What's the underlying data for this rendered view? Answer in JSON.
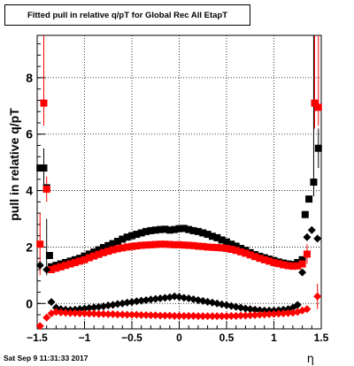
{
  "chart_data": {
    "type": "scatter",
    "title": "Fitted pull in relative q/pT for Global Rec All EtapT",
    "xlabel": "η",
    "ylabel": "pull in relative q/pT",
    "xlim": [
      -1.5,
      1.5
    ],
    "ylim": [
      -0.9,
      9.5
    ],
    "xticks": [
      -1.5,
      -1,
      -0.5,
      0,
      0.5,
      1,
      1.5
    ],
    "xticklabels": [
      "−1.5",
      "−1",
      "−0.5",
      "0",
      "0.5",
      "1",
      "1.5"
    ],
    "yticks": [
      0,
      2,
      4,
      6,
      8
    ],
    "yticklabels": [
      "0",
      "2",
      "4",
      "6",
      "8"
    ],
    "grid": true,
    "legend": "none",
    "colors": {
      "black": "#000000",
      "red": "#ff0000"
    },
    "series": [
      {
        "marker": "square",
        "color": "#000000",
        "points": [
          {
            "x": -1.47,
            "y": 4.8
          },
          {
            "x": -1.43,
            "y": 4.8
          },
          {
            "x": -1.4,
            "y": 4.1
          },
          {
            "x": -1.37,
            "y": 1.7
          },
          {
            "x": -1.35,
            "y": 1.3
          },
          {
            "x": -1.3,
            "y": 1.35
          },
          {
            "x": -1.25,
            "y": 1.4
          },
          {
            "x": -1.2,
            "y": 1.45
          },
          {
            "x": -1.15,
            "y": 1.5
          },
          {
            "x": -1.1,
            "y": 1.55
          },
          {
            "x": -1.05,
            "y": 1.6
          },
          {
            "x": -1.0,
            "y": 1.68
          },
          {
            "x": -0.95,
            "y": 1.75
          },
          {
            "x": -0.9,
            "y": 1.82
          },
          {
            "x": -0.85,
            "y": 1.9
          },
          {
            "x": -0.8,
            "y": 1.98
          },
          {
            "x": -0.75,
            "y": 2.05
          },
          {
            "x": -0.7,
            "y": 2.12
          },
          {
            "x": -0.65,
            "y": 2.2
          },
          {
            "x": -0.6,
            "y": 2.28
          },
          {
            "x": -0.55,
            "y": 2.35
          },
          {
            "x": -0.5,
            "y": 2.4
          },
          {
            "x": -0.45,
            "y": 2.45
          },
          {
            "x": -0.4,
            "y": 2.5
          },
          {
            "x": -0.35,
            "y": 2.55
          },
          {
            "x": -0.3,
            "y": 2.58
          },
          {
            "x": -0.25,
            "y": 2.6
          },
          {
            "x": -0.2,
            "y": 2.62
          },
          {
            "x": -0.15,
            "y": 2.63
          },
          {
            "x": -0.1,
            "y": 2.6
          },
          {
            "x": -0.05,
            "y": 2.62
          },
          {
            "x": 0.0,
            "y": 2.65
          },
          {
            "x": 0.05,
            "y": 2.66
          },
          {
            "x": 0.1,
            "y": 2.62
          },
          {
            "x": 0.15,
            "y": 2.58
          },
          {
            "x": 0.2,
            "y": 2.55
          },
          {
            "x": 0.25,
            "y": 2.5
          },
          {
            "x": 0.3,
            "y": 2.45
          },
          {
            "x": 0.35,
            "y": 2.38
          },
          {
            "x": 0.4,
            "y": 2.33
          },
          {
            "x": 0.45,
            "y": 2.25
          },
          {
            "x": 0.5,
            "y": 2.18
          },
          {
            "x": 0.55,
            "y": 2.1
          },
          {
            "x": 0.6,
            "y": 2.03
          },
          {
            "x": 0.65,
            "y": 1.95
          },
          {
            "x": 0.7,
            "y": 1.88
          },
          {
            "x": 0.75,
            "y": 1.8
          },
          {
            "x": 0.8,
            "y": 1.73
          },
          {
            "x": 0.85,
            "y": 1.67
          },
          {
            "x": 0.9,
            "y": 1.62
          },
          {
            "x": 0.95,
            "y": 1.57
          },
          {
            "x": 1.0,
            "y": 1.52
          },
          {
            "x": 1.05,
            "y": 1.47
          },
          {
            "x": 1.1,
            "y": 1.43
          },
          {
            "x": 1.15,
            "y": 1.4
          },
          {
            "x": 1.2,
            "y": 1.38
          },
          {
            "x": 1.25,
            "y": 1.45
          },
          {
            "x": 1.3,
            "y": 1.55
          },
          {
            "x": 1.33,
            "y": 3.15
          },
          {
            "x": 1.37,
            "y": 3.7
          },
          {
            "x": 1.42,
            "y": 4.3
          },
          {
            "x": 1.47,
            "y": 5.5
          }
        ]
      },
      {
        "marker": "square",
        "color": "#ff0000",
        "points": [
          {
            "x": -1.47,
            "y": 2.1
          },
          {
            "x": -1.43,
            "y": 7.1
          },
          {
            "x": -1.4,
            "y": 4.05
          },
          {
            "x": -1.35,
            "y": 1.2
          },
          {
            "x": -1.3,
            "y": 1.25
          },
          {
            "x": -1.25,
            "y": 1.3
          },
          {
            "x": -1.2,
            "y": 1.35
          },
          {
            "x": -1.15,
            "y": 1.4
          },
          {
            "x": -1.1,
            "y": 1.45
          },
          {
            "x": -1.05,
            "y": 1.5
          },
          {
            "x": -1.0,
            "y": 1.55
          },
          {
            "x": -0.95,
            "y": 1.62
          },
          {
            "x": -0.9,
            "y": 1.68
          },
          {
            "x": -0.85,
            "y": 1.74
          },
          {
            "x": -0.8,
            "y": 1.8
          },
          {
            "x": -0.75,
            "y": 1.85
          },
          {
            "x": -0.7,
            "y": 1.9
          },
          {
            "x": -0.65,
            "y": 1.94
          },
          {
            "x": -0.6,
            "y": 1.97
          },
          {
            "x": -0.55,
            "y": 2.0
          },
          {
            "x": -0.5,
            "y": 2.02
          },
          {
            "x": -0.45,
            "y": 2.04
          },
          {
            "x": -0.4,
            "y": 2.06
          },
          {
            "x": -0.35,
            "y": 2.07
          },
          {
            "x": -0.3,
            "y": 2.08
          },
          {
            "x": -0.25,
            "y": 2.09
          },
          {
            "x": -0.2,
            "y": 2.1
          },
          {
            "x": -0.15,
            "y": 2.1
          },
          {
            "x": -0.1,
            "y": 2.09
          },
          {
            "x": -0.05,
            "y": 2.08
          },
          {
            "x": 0.0,
            "y": 2.08
          },
          {
            "x": 0.05,
            "y": 2.07
          },
          {
            "x": 0.1,
            "y": 2.06
          },
          {
            "x": 0.15,
            "y": 2.05
          },
          {
            "x": 0.2,
            "y": 2.03
          },
          {
            "x": 0.25,
            "y": 2.02
          },
          {
            "x": 0.3,
            "y": 2.0
          },
          {
            "x": 0.35,
            "y": 1.99
          },
          {
            "x": 0.4,
            "y": 1.98
          },
          {
            "x": 0.45,
            "y": 1.97
          },
          {
            "x": 0.5,
            "y": 1.95
          },
          {
            "x": 0.55,
            "y": 1.92
          },
          {
            "x": 0.6,
            "y": 1.88
          },
          {
            "x": 0.65,
            "y": 1.83
          },
          {
            "x": 0.7,
            "y": 1.78
          },
          {
            "x": 0.75,
            "y": 1.72
          },
          {
            "x": 0.8,
            "y": 1.66
          },
          {
            "x": 0.85,
            "y": 1.6
          },
          {
            "x": 0.9,
            "y": 1.55
          },
          {
            "x": 0.95,
            "y": 1.5
          },
          {
            "x": 1.0,
            "y": 1.45
          },
          {
            "x": 1.05,
            "y": 1.41
          },
          {
            "x": 1.1,
            "y": 1.37
          },
          {
            "x": 1.15,
            "y": 1.34
          },
          {
            "x": 1.2,
            "y": 1.32
          },
          {
            "x": 1.25,
            "y": 1.33
          },
          {
            "x": 1.3,
            "y": 1.4
          },
          {
            "x": 1.35,
            "y": 1.75
          },
          {
            "x": 1.43,
            "y": 7.1
          },
          {
            "x": 1.47,
            "y": 6.95
          }
        ]
      },
      {
        "marker": "diamond",
        "color": "#000000",
        "points": [
          {
            "x": -1.47,
            "y": 1.35
          },
          {
            "x": -1.4,
            "y": 1.2
          },
          {
            "x": -1.35,
            "y": 0.05
          },
          {
            "x": -1.3,
            "y": -0.15
          },
          {
            "x": -1.25,
            "y": -0.2
          },
          {
            "x": -1.2,
            "y": -0.22
          },
          {
            "x": -1.15,
            "y": -0.23
          },
          {
            "x": -1.1,
            "y": -0.22
          },
          {
            "x": -1.05,
            "y": -0.2
          },
          {
            "x": -1.0,
            "y": -0.18
          },
          {
            "x": -0.95,
            "y": -0.16
          },
          {
            "x": -0.9,
            "y": -0.14
          },
          {
            "x": -0.85,
            "y": -0.12
          },
          {
            "x": -0.8,
            "y": -0.1
          },
          {
            "x": -0.75,
            "y": -0.07
          },
          {
            "x": -0.7,
            "y": -0.05
          },
          {
            "x": -0.65,
            "y": -0.02
          },
          {
            "x": -0.6,
            "y": 0.0
          },
          {
            "x": -0.55,
            "y": 0.03
          },
          {
            "x": -0.5,
            "y": 0.05
          },
          {
            "x": -0.45,
            "y": 0.08
          },
          {
            "x": -0.4,
            "y": 0.1
          },
          {
            "x": -0.35,
            "y": 0.12
          },
          {
            "x": -0.3,
            "y": 0.14
          },
          {
            "x": -0.25,
            "y": 0.16
          },
          {
            "x": -0.2,
            "y": 0.18
          },
          {
            "x": -0.15,
            "y": 0.2
          },
          {
            "x": -0.1,
            "y": 0.22
          },
          {
            "x": -0.05,
            "y": 0.25
          },
          {
            "x": 0.0,
            "y": 0.23
          },
          {
            "x": 0.05,
            "y": 0.2
          },
          {
            "x": 0.1,
            "y": 0.18
          },
          {
            "x": 0.15,
            "y": 0.15
          },
          {
            "x": 0.2,
            "y": 0.12
          },
          {
            "x": 0.25,
            "y": 0.09
          },
          {
            "x": 0.3,
            "y": 0.06
          },
          {
            "x": 0.35,
            "y": 0.03
          },
          {
            "x": 0.4,
            "y": 0.0
          },
          {
            "x": 0.45,
            "y": -0.03
          },
          {
            "x": 0.5,
            "y": -0.06
          },
          {
            "x": 0.55,
            "y": -0.09
          },
          {
            "x": 0.6,
            "y": -0.12
          },
          {
            "x": 0.65,
            "y": -0.15
          },
          {
            "x": 0.7,
            "y": -0.18
          },
          {
            "x": 0.75,
            "y": -0.2
          },
          {
            "x": 0.8,
            "y": -0.22
          },
          {
            "x": 0.85,
            "y": -0.24
          },
          {
            "x": 0.9,
            "y": -0.25
          },
          {
            "x": 0.95,
            "y": -0.25
          },
          {
            "x": 1.0,
            "y": -0.25
          },
          {
            "x": 1.05,
            "y": -0.24
          },
          {
            "x": 1.1,
            "y": -0.22
          },
          {
            "x": 1.15,
            "y": -0.2
          },
          {
            "x": 1.2,
            "y": -0.15
          },
          {
            "x": 1.25,
            "y": -0.05
          },
          {
            "x": 1.3,
            "y": 1.1
          },
          {
            "x": 1.35,
            "y": 2.35
          },
          {
            "x": 1.4,
            "y": 2.6
          },
          {
            "x": 1.46,
            "y": 2.3
          }
        ]
      },
      {
        "marker": "diamond",
        "color": "#ff0000",
        "points": [
          {
            "x": -1.47,
            "y": -0.8
          },
          {
            "x": -1.4,
            "y": -0.5
          },
          {
            "x": -1.35,
            "y": -0.35
          },
          {
            "x": -1.3,
            "y": -0.3
          },
          {
            "x": -1.25,
            "y": -0.32
          },
          {
            "x": -1.2,
            "y": -0.33
          },
          {
            "x": -1.15,
            "y": -0.34
          },
          {
            "x": -1.1,
            "y": -0.34
          },
          {
            "x": -1.05,
            "y": -0.35
          },
          {
            "x": -1.0,
            "y": -0.35
          },
          {
            "x": -0.95,
            "y": -0.36
          },
          {
            "x": -0.9,
            "y": -0.36
          },
          {
            "x": -0.85,
            "y": -0.37
          },
          {
            "x": -0.8,
            "y": -0.37
          },
          {
            "x": -0.75,
            "y": -0.38
          },
          {
            "x": -0.7,
            "y": -0.38
          },
          {
            "x": -0.65,
            "y": -0.39
          },
          {
            "x": -0.6,
            "y": -0.39
          },
          {
            "x": -0.55,
            "y": -0.4
          },
          {
            "x": -0.5,
            "y": -0.4
          },
          {
            "x": -0.45,
            "y": -0.4
          },
          {
            "x": -0.4,
            "y": -0.41
          },
          {
            "x": -0.35,
            "y": -0.41
          },
          {
            "x": -0.3,
            "y": -0.42
          },
          {
            "x": -0.25,
            "y": -0.42
          },
          {
            "x": -0.2,
            "y": -0.43
          },
          {
            "x": -0.15,
            "y": -0.43
          },
          {
            "x": -0.1,
            "y": -0.43
          },
          {
            "x": -0.05,
            "y": -0.44
          },
          {
            "x": 0.0,
            "y": -0.44
          },
          {
            "x": 0.05,
            "y": -0.44
          },
          {
            "x": 0.1,
            "y": -0.44
          },
          {
            "x": 0.15,
            "y": -0.44
          },
          {
            "x": 0.2,
            "y": -0.45
          },
          {
            "x": 0.25,
            "y": -0.45
          },
          {
            "x": 0.3,
            "y": -0.45
          },
          {
            "x": 0.35,
            "y": -0.45
          },
          {
            "x": 0.4,
            "y": -0.45
          },
          {
            "x": 0.45,
            "y": -0.45
          },
          {
            "x": 0.5,
            "y": -0.45
          },
          {
            "x": 0.55,
            "y": -0.44
          },
          {
            "x": 0.6,
            "y": -0.44
          },
          {
            "x": 0.65,
            "y": -0.43
          },
          {
            "x": 0.7,
            "y": -0.43
          },
          {
            "x": 0.75,
            "y": -0.42
          },
          {
            "x": 0.8,
            "y": -0.41
          },
          {
            "x": 0.85,
            "y": -0.4
          },
          {
            "x": 0.9,
            "y": -0.39
          },
          {
            "x": 0.95,
            "y": -0.38
          },
          {
            "x": 1.0,
            "y": -0.37
          },
          {
            "x": 1.05,
            "y": -0.36
          },
          {
            "x": 1.1,
            "y": -0.35
          },
          {
            "x": 1.15,
            "y": -0.34
          },
          {
            "x": 1.2,
            "y": -0.33
          },
          {
            "x": 1.25,
            "y": -0.3
          },
          {
            "x": 1.3,
            "y": -0.25
          },
          {
            "x": 1.35,
            "y": -0.2
          },
          {
            "x": 1.46,
            "y": 0.25
          }
        ]
      }
    ],
    "error_bars": [
      {
        "x": -1.47,
        "y_low": 1.0,
        "y_high": 3.2,
        "color": "#ff0000"
      },
      {
        "x": -1.43,
        "y_low": 6.3,
        "y_high": 9.5,
        "color": "#ff0000"
      },
      {
        "x": -1.4,
        "y_low": 3.6,
        "y_high": 4.5,
        "color": "#ff0000"
      },
      {
        "x": -1.43,
        "y_low": 4.1,
        "y_high": 5.5,
        "color": "#000000"
      },
      {
        "x": -1.4,
        "y_low": 1.0,
        "y_high": 3.0,
        "color": "#000000"
      },
      {
        "x": 1.43,
        "y_low": 6.2,
        "y_high": 9.5,
        "color": "#ff0000"
      },
      {
        "x": 1.47,
        "y_low": 6.3,
        "y_high": 9.5,
        "color": "#ff0000"
      },
      {
        "x": 1.42,
        "y_low": 3.8,
        "y_high": 9.5,
        "color": "#000000"
      },
      {
        "x": 1.47,
        "y_low": 4.8,
        "y_high": 6.2,
        "color": "#000000"
      },
      {
        "x": 1.46,
        "y_low": -0.2,
        "y_high": 0.7,
        "color": "#ff0000"
      },
      {
        "x": 1.35,
        "y_low": 1.4,
        "y_high": 2.1,
        "color": "#ff0000"
      }
    ]
  },
  "footer": {
    "timestamp": "Sat Sep  9 11:31:33 2017"
  }
}
